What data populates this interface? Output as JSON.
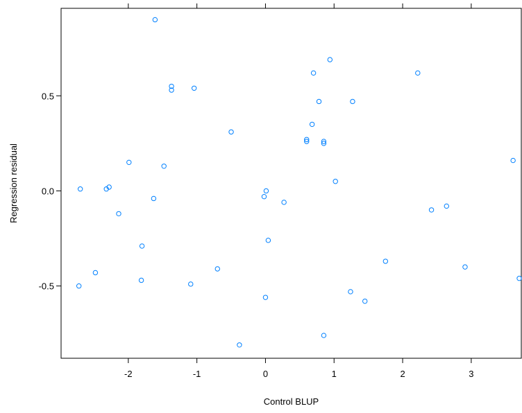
{
  "chart_data": {
    "type": "scatter",
    "xlabel": "Control BLUP",
    "ylabel": "Regression residual",
    "xlim": [
      -2.98,
      3.73
    ],
    "ylim": [
      -0.88,
      0.96
    ],
    "x_ticks": [
      -2,
      -1,
      0,
      1,
      2,
      3
    ],
    "x_tick_labels": [
      "-2",
      "-1",
      "0",
      "1",
      "2",
      "3"
    ],
    "y_ticks": [
      -0.5,
      0.0,
      0.5
    ],
    "y_tick_labels": [
      "-0.5",
      "0.0",
      "0.5"
    ],
    "grid": false,
    "point_color": "#0080ff",
    "series": [
      {
        "x": [
          -1.61,
          -1.37,
          -1.37,
          -1.04,
          0.7,
          0.94,
          2.22,
          0.78,
          1.27,
          -0.5,
          0.68,
          0.6,
          0.6,
          0.85,
          0.85,
          -1.99,
          -1.48,
          3.61,
          -2.7,
          -2.28,
          -2.32,
          0.01,
          -0.02,
          1.02,
          -1.63,
          -2.14,
          0.27,
          2.42,
          2.64,
          0.04,
          -1.8,
          1.75,
          -2.48,
          -1.81,
          -0.7,
          2.91,
          -2.72,
          -1.09,
          3.7,
          1.24,
          1.45,
          0.0,
          0.85,
          -0.38
        ],
        "y": [
          0.9,
          0.55,
          0.53,
          0.54,
          0.62,
          0.69,
          0.62,
          0.47,
          0.47,
          0.31,
          0.35,
          0.27,
          0.26,
          0.26,
          0.25,
          0.15,
          0.13,
          0.16,
          0.01,
          0.02,
          0.01,
          0.0,
          -0.03,
          0.05,
          -0.04,
          -0.12,
          -0.06,
          -0.1,
          -0.08,
          -0.26,
          -0.29,
          -0.37,
          -0.43,
          -0.47,
          -0.41,
          -0.4,
          -0.5,
          -0.49,
          -0.46,
          -0.53,
          -0.58,
          -0.56,
          -0.76,
          -0.81
        ]
      }
    ]
  }
}
